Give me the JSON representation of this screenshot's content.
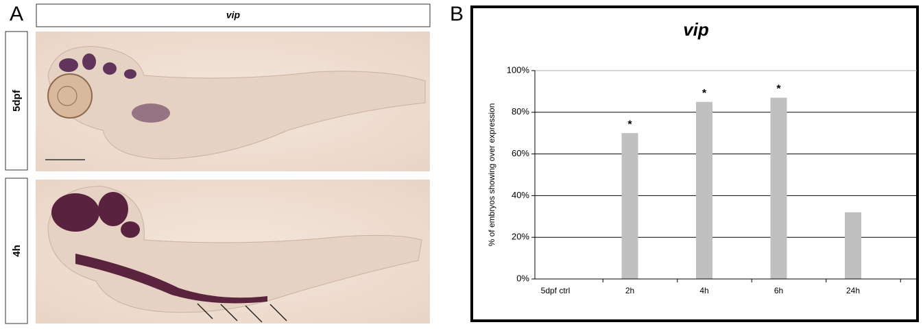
{
  "panel_a": {
    "letter": "A",
    "header": "vip",
    "rows": [
      "5dpf",
      "4h"
    ]
  },
  "panel_b_letter": "B",
  "chart_data": {
    "type": "bar",
    "title": "vip",
    "y_label": "% of embryos showing over expression",
    "categories": [
      "5dpf ctrl",
      "2h",
      "4h",
      "6h",
      "24h"
    ],
    "values": [
      0,
      70,
      85,
      87,
      32
    ],
    "color": "#c0c0c0",
    "ylim": [
      0,
      100
    ],
    "yticks": [
      {
        "value": 0,
        "label": "0%"
      },
      {
        "value": 20,
        "label": "20%"
      },
      {
        "value": 40,
        "label": "40%"
      },
      {
        "value": 60,
        "label": "60%"
      },
      {
        "value": 80,
        "label": "80%"
      },
      {
        "value": 100,
        "label": "100%"
      }
    ],
    "grid": true,
    "annotations": [
      {
        "x": "2h",
        "text": "*"
      },
      {
        "x": "4h",
        "text": "*"
      },
      {
        "x": "6h",
        "text": "*"
      }
    ]
  }
}
